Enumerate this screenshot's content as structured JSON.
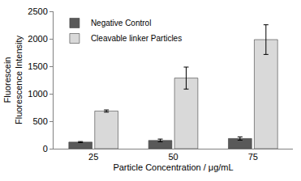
{
  "chart_data": {
    "type": "bar",
    "categories": [
      "25",
      "50",
      "75"
    ],
    "xlabel": "Particle Concentration / μg/mL",
    "ylabel": "Fluorescein\nFluorescence Intensity",
    "series": [
      {
        "name": "Negative Control",
        "color": "#595959",
        "values": [
          120,
          150,
          185
        ],
        "errors": [
          10,
          25,
          30
        ]
      },
      {
        "name": "Cleavable linker Particles",
        "color": "#d9d9d9",
        "values": [
          685,
          1285,
          1985
        ],
        "errors": [
          20,
          200,
          270
        ]
      }
    ],
    "ylim": [
      0,
      2500
    ],
    "yticks": [
      0,
      500,
      1000,
      1500,
      2000,
      2500
    ],
    "grid": false,
    "legend": "top-left"
  }
}
